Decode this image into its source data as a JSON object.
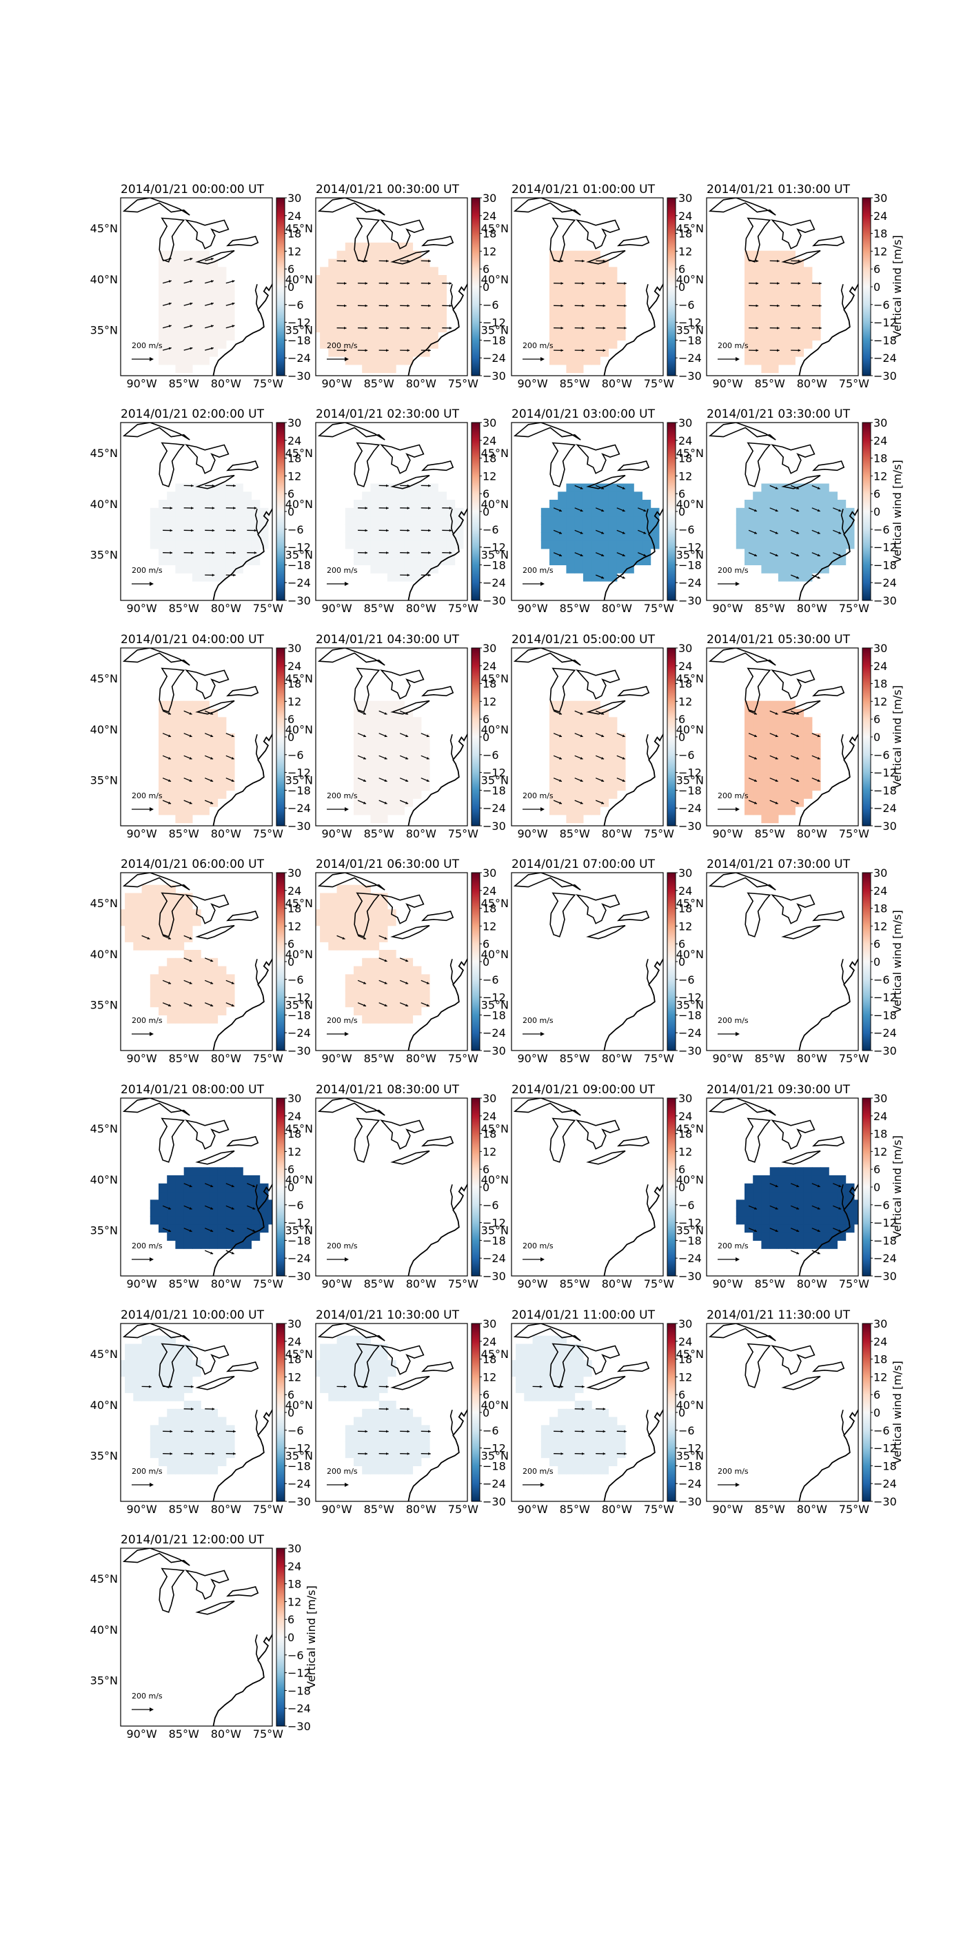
{
  "chart_data": {
    "type": "heatmap",
    "variable_label": "Vertical wind [m/s]",
    "colorbar": {
      "ticks": [
        30,
        24,
        18,
        12,
        6,
        0,
        -6,
        -12,
        -18,
        -24,
        -30
      ],
      "tick_labels": [
        "30",
        "24",
        "18",
        "12",
        "6",
        "0",
        "−6",
        "−12",
        "−18",
        "−24",
        "−30"
      ],
      "range": [
        -30,
        30
      ],
      "colormap": [
        "#053061",
        "#2166ac",
        "#4393c3",
        "#92c5de",
        "#d1e5f0",
        "#f7f7f7",
        "#fddbc7",
        "#f4a582",
        "#d6604d",
        "#b2182b",
        "#67001f"
      ]
    },
    "lat_ticks": [
      "45°N",
      "40°N",
      "35°N"
    ],
    "lon_ticks": [
      "90°W",
      "85°W",
      "80°W",
      "75°W"
    ],
    "scale_arrow_label": "200 m/s",
    "panels": [
      {
        "title": "2014/01/21 00:00:00 UT",
        "value": 1,
        "region": "A",
        "arrows": "NE"
      },
      {
        "title": "2014/01/21 00:30:00 UT",
        "value": 5,
        "region": "B",
        "arrows": "E"
      },
      {
        "title": "2014/01/21 01:00:00 UT",
        "value": 6,
        "region": "A",
        "arrows": "E"
      },
      {
        "title": "2014/01/21 01:30:00 UT",
        "value": 6,
        "region": "A",
        "arrows": "E"
      },
      {
        "title": "2014/01/21 02:00:00 UT",
        "value": -1,
        "region": "C",
        "arrows": "E"
      },
      {
        "title": "2014/01/21 02:30:00 UT",
        "value": -1,
        "region": "C",
        "arrows": "E"
      },
      {
        "title": "2014/01/21 03:00:00 UT",
        "value": -18,
        "region": "C",
        "arrows": "SE"
      },
      {
        "title": "2014/01/21 03:30:00 UT",
        "value": -12,
        "region": "C",
        "arrows": "SE"
      },
      {
        "title": "2014/01/21 04:00:00 UT",
        "value": 5,
        "region": "A",
        "arrows": "SE"
      },
      {
        "title": "2014/01/21 04:30:00 UT",
        "value": 1,
        "region": "A",
        "arrows": "SE"
      },
      {
        "title": "2014/01/21 05:00:00 UT",
        "value": 5,
        "region": "A",
        "arrows": "SE"
      },
      {
        "title": "2014/01/21 05:30:00 UT",
        "value": 9,
        "region": "A",
        "arrows": "SE"
      },
      {
        "title": "2014/01/21 06:00:00 UT",
        "value": 5,
        "region": "D",
        "arrows": "SE"
      },
      {
        "title": "2014/01/21 06:30:00 UT",
        "value": 5,
        "region": "D",
        "arrows": "SE"
      },
      {
        "title": "2014/01/21 07:00:00 UT",
        "value": null,
        "region": "none",
        "arrows": "none"
      },
      {
        "title": "2014/01/21 07:30:00 UT",
        "value": null,
        "region": "none",
        "arrows": "none"
      },
      {
        "title": "2014/01/21 08:00:00 UT",
        "value": -27,
        "region": "E",
        "arrows": "SE"
      },
      {
        "title": "2014/01/21 08:30:00 UT",
        "value": null,
        "region": "none",
        "arrows": "none"
      },
      {
        "title": "2014/01/21 09:00:00 UT",
        "value": null,
        "region": "none",
        "arrows": "none"
      },
      {
        "title": "2014/01/21 09:30:00 UT",
        "value": -27,
        "region": "E",
        "arrows": "SE"
      },
      {
        "title": "2014/01/21 10:00:00 UT",
        "value": -3,
        "region": "D",
        "arrows": "E"
      },
      {
        "title": "2014/01/21 10:30:00 UT",
        "value": -3,
        "region": "D",
        "arrows": "E"
      },
      {
        "title": "2014/01/21 11:00:00 UT",
        "value": -3,
        "region": "D",
        "arrows": "E"
      },
      {
        "title": "2014/01/21 11:30:00 UT",
        "value": null,
        "region": "none",
        "arrows": "none"
      },
      {
        "title": "2014/01/21 12:00:00 UT",
        "value": null,
        "region": "none",
        "arrows": "none"
      }
    ]
  }
}
